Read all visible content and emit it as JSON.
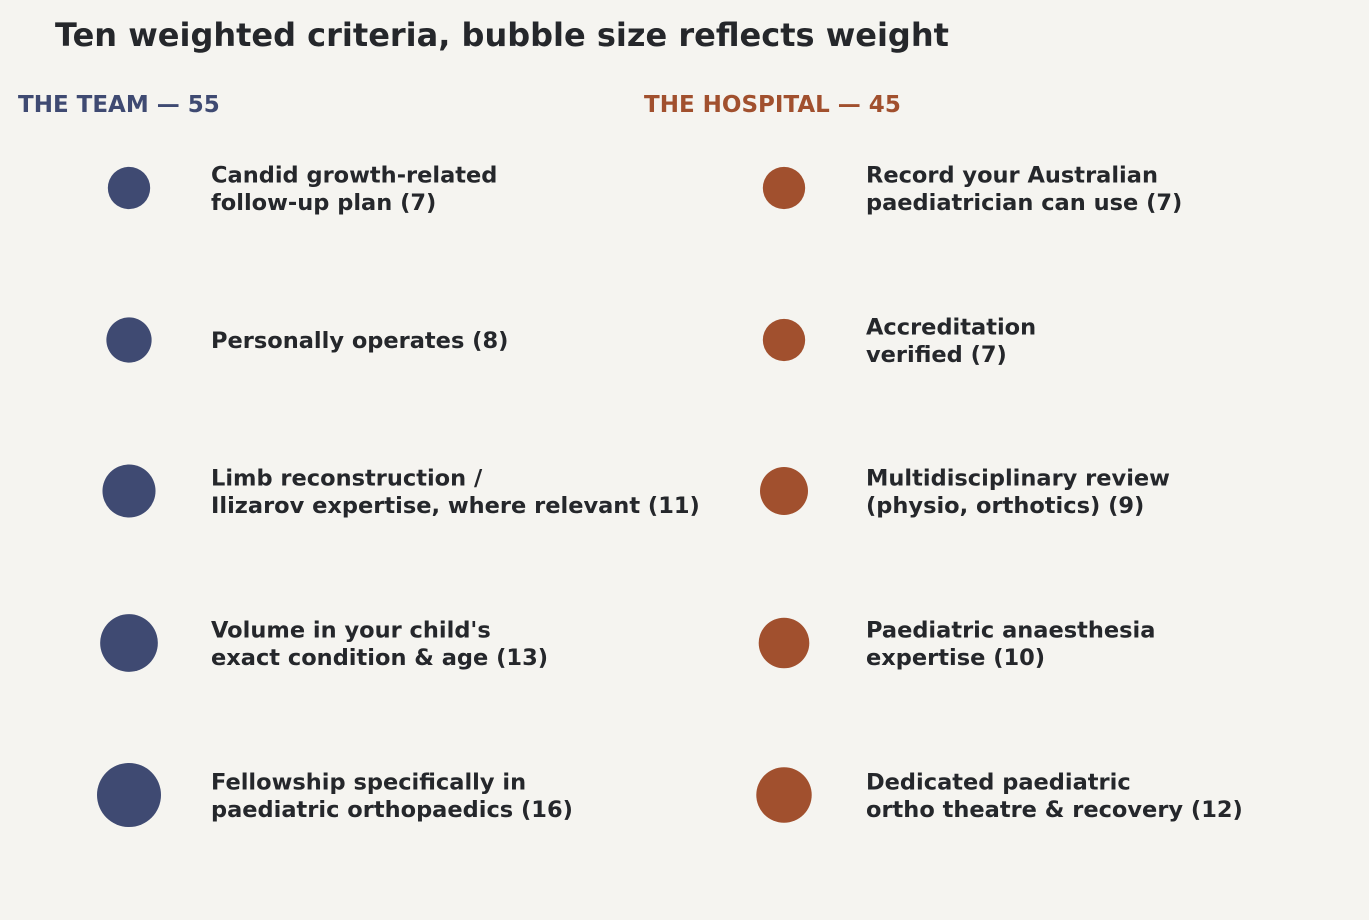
{
  "chart_data": {
    "type": "scatter",
    "title": "Ten weighted criteria, bubble size reflects weight",
    "groups": [
      {
        "header": "THE TEAM — 55",
        "color": "#3f4a72",
        "items": [
          {
            "lines": [
              "Candid growth-related",
              "follow-up plan  (7)"
            ],
            "weight": 7
          },
          {
            "lines": [
              "Personally operates  (8)"
            ],
            "weight": 8
          },
          {
            "lines": [
              "Limb reconstruction /",
              "Ilizarov expertise, where relevant  (11)"
            ],
            "weight": 11
          },
          {
            "lines": [
              "Volume in your child's",
              "exact condition & age  (13)"
            ],
            "weight": 13
          },
          {
            "lines": [
              "Fellowship specifically in",
              "paediatric orthopaedics  (16)"
            ],
            "weight": 16
          }
        ]
      },
      {
        "header": "THE HOSPITAL — 45",
        "color": "#a1502e",
        "items": [
          {
            "lines": [
              "Record your Australian",
              "paediatrician can use  (7)"
            ],
            "weight": 7
          },
          {
            "lines": [
              "Accreditation",
              "verified  (7)"
            ],
            "weight": 7
          },
          {
            "lines": [
              "Multidisciplinary review",
              "(physio, orthotics)  (9)"
            ],
            "weight": 9
          },
          {
            "lines": [
              "Paediatric anaesthesia",
              "expertise  (10)"
            ],
            "weight": 10
          },
          {
            "lines": [
              "Dedicated paediatric",
              "ortho theatre & recovery  (12)"
            ],
            "weight": 12
          }
        ]
      }
    ]
  }
}
